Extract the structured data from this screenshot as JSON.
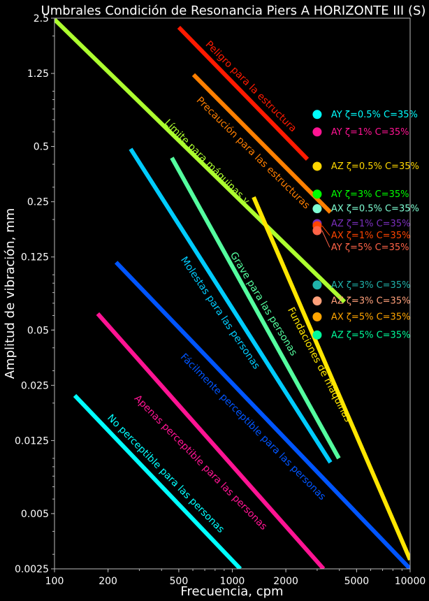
{
  "chart_data": {
    "type": "line",
    "title": "Umbrales Condición de Resonancia Piers A HORIZONTE III (S)",
    "xlabel": "Frecuencia, cpm",
    "ylabel": "Amplitud de vibración, mm",
    "xscale": "log",
    "yscale": "log",
    "xlim": [
      100,
      10000
    ],
    "ylim": [
      0.0025,
      2.5
    ],
    "xticks": [
      100,
      200,
      500,
      1000,
      2000,
      5000,
      10000
    ],
    "xtick_labels": [
      "100",
      "200",
      "500",
      "1000",
      "2000",
      "5000",
      "10000"
    ],
    "yticks": [
      2.5,
      1.25,
      0.5,
      0.25,
      0.125,
      0.05,
      0.025,
      0.0125,
      0.005,
      0.0025
    ],
    "ytick_labels": [
      "2.5",
      "1.25",
      "0.5",
      "0.25",
      "0.125",
      "0.05",
      "0.025",
      "0.0125",
      "0.005",
      "0.0025"
    ],
    "grid": false,
    "background": "#000000",
    "series": [
      {
        "label": "Peligro para la estructura",
        "color": "#ff1a00",
        "x": [
          500,
          2645
        ],
        "y": [
          2.23,
          0.426
        ]
      },
      {
        "label": "Precaución para las estructuras",
        "color": "#ff7f00",
        "x": [
          605,
          3565
        ],
        "y": [
          1.23,
          0.219
        ]
      },
      {
        "label": "Límite para máquinas y",
        "color": "#adff2f",
        "x": [
          100,
          4275
        ],
        "y": [
          2.46,
          0.0712
        ]
      },
      {
        "label": "Fundaciones de máquinas",
        "color": "#ffe600",
        "x": [
          1318,
          10000
        ],
        "y": [
          0.265,
          0.0028
        ]
      },
      {
        "label": "Grave para las personas",
        "color": "#54ff9f",
        "x": [
          457,
          3973
        ],
        "y": [
          0.434,
          0.01
        ]
      },
      {
        "label": "Molestas para las personas",
        "color": "#00ccff",
        "x": [
          268,
          3565
        ],
        "y": [
          0.485,
          0.0095
        ]
      },
      {
        "label": "Fácilmente perceptible para las personas",
        "color": "#0055ff",
        "x": [
          222,
          10000
        ],
        "y": [
          0.117,
          0.0025
        ]
      },
      {
        "label": "Apenas perceptible para las personas",
        "color": "#ff1493",
        "x": [
          175,
          3258
        ],
        "y": [
          0.0614,
          0.0025
        ]
      },
      {
        "label": "No perceptible para las personas",
        "color": "#00ffff",
        "x": [
          130,
          1109
        ],
        "y": [
          0.022,
          0.0025
        ]
      }
    ],
    "points": [
      {
        "label": "AY ζ=0.5% C=35%",
        "color": "#00ffff",
        "x": 3000,
        "y": 0.747
      },
      {
        "label": "AY ζ=1% C=35%",
        "color": "#ff1493",
        "x": 3000,
        "y": 0.6
      },
      {
        "label": "AZ ζ=0.5% C=35%",
        "color": "#ffd700",
        "x": 3000,
        "y": 0.39
      },
      {
        "label": "AY ζ=3% C=35%",
        "color": "#00ff00",
        "x": 3000,
        "y": 0.275
      },
      {
        "label": "AX ζ=0.5% C=35%",
        "color": "#7fffd4",
        "x": 3000,
        "y": 0.229
      },
      {
        "label": "AZ ζ=1% C=35%",
        "color": "#7b2fbe",
        "x": 3000,
        "y": 0.19
      },
      {
        "label": "AX ζ=1% C=35%",
        "color": "#ff4500",
        "x": 3000,
        "y": 0.185
      },
      {
        "label": "AY ζ=5% C=35%",
        "color": "#ff6347",
        "x": 3000,
        "y": 0.174
      },
      {
        "label": "AX ζ=3% C=35%",
        "color": "#20b2aa",
        "x": 3000,
        "y": 0.088
      },
      {
        "label": "AZ ζ=3% C=35%",
        "color": "#ffa07a",
        "x": 3000,
        "y": 0.072
      },
      {
        "label": "AX ζ=5% C=35%",
        "color": "#ffa500",
        "x": 3000,
        "y": 0.059
      },
      {
        "label": "AZ ζ=5% C=35%",
        "color": "#00fa9a",
        "x": 3000,
        "y": 0.047
      }
    ]
  }
}
